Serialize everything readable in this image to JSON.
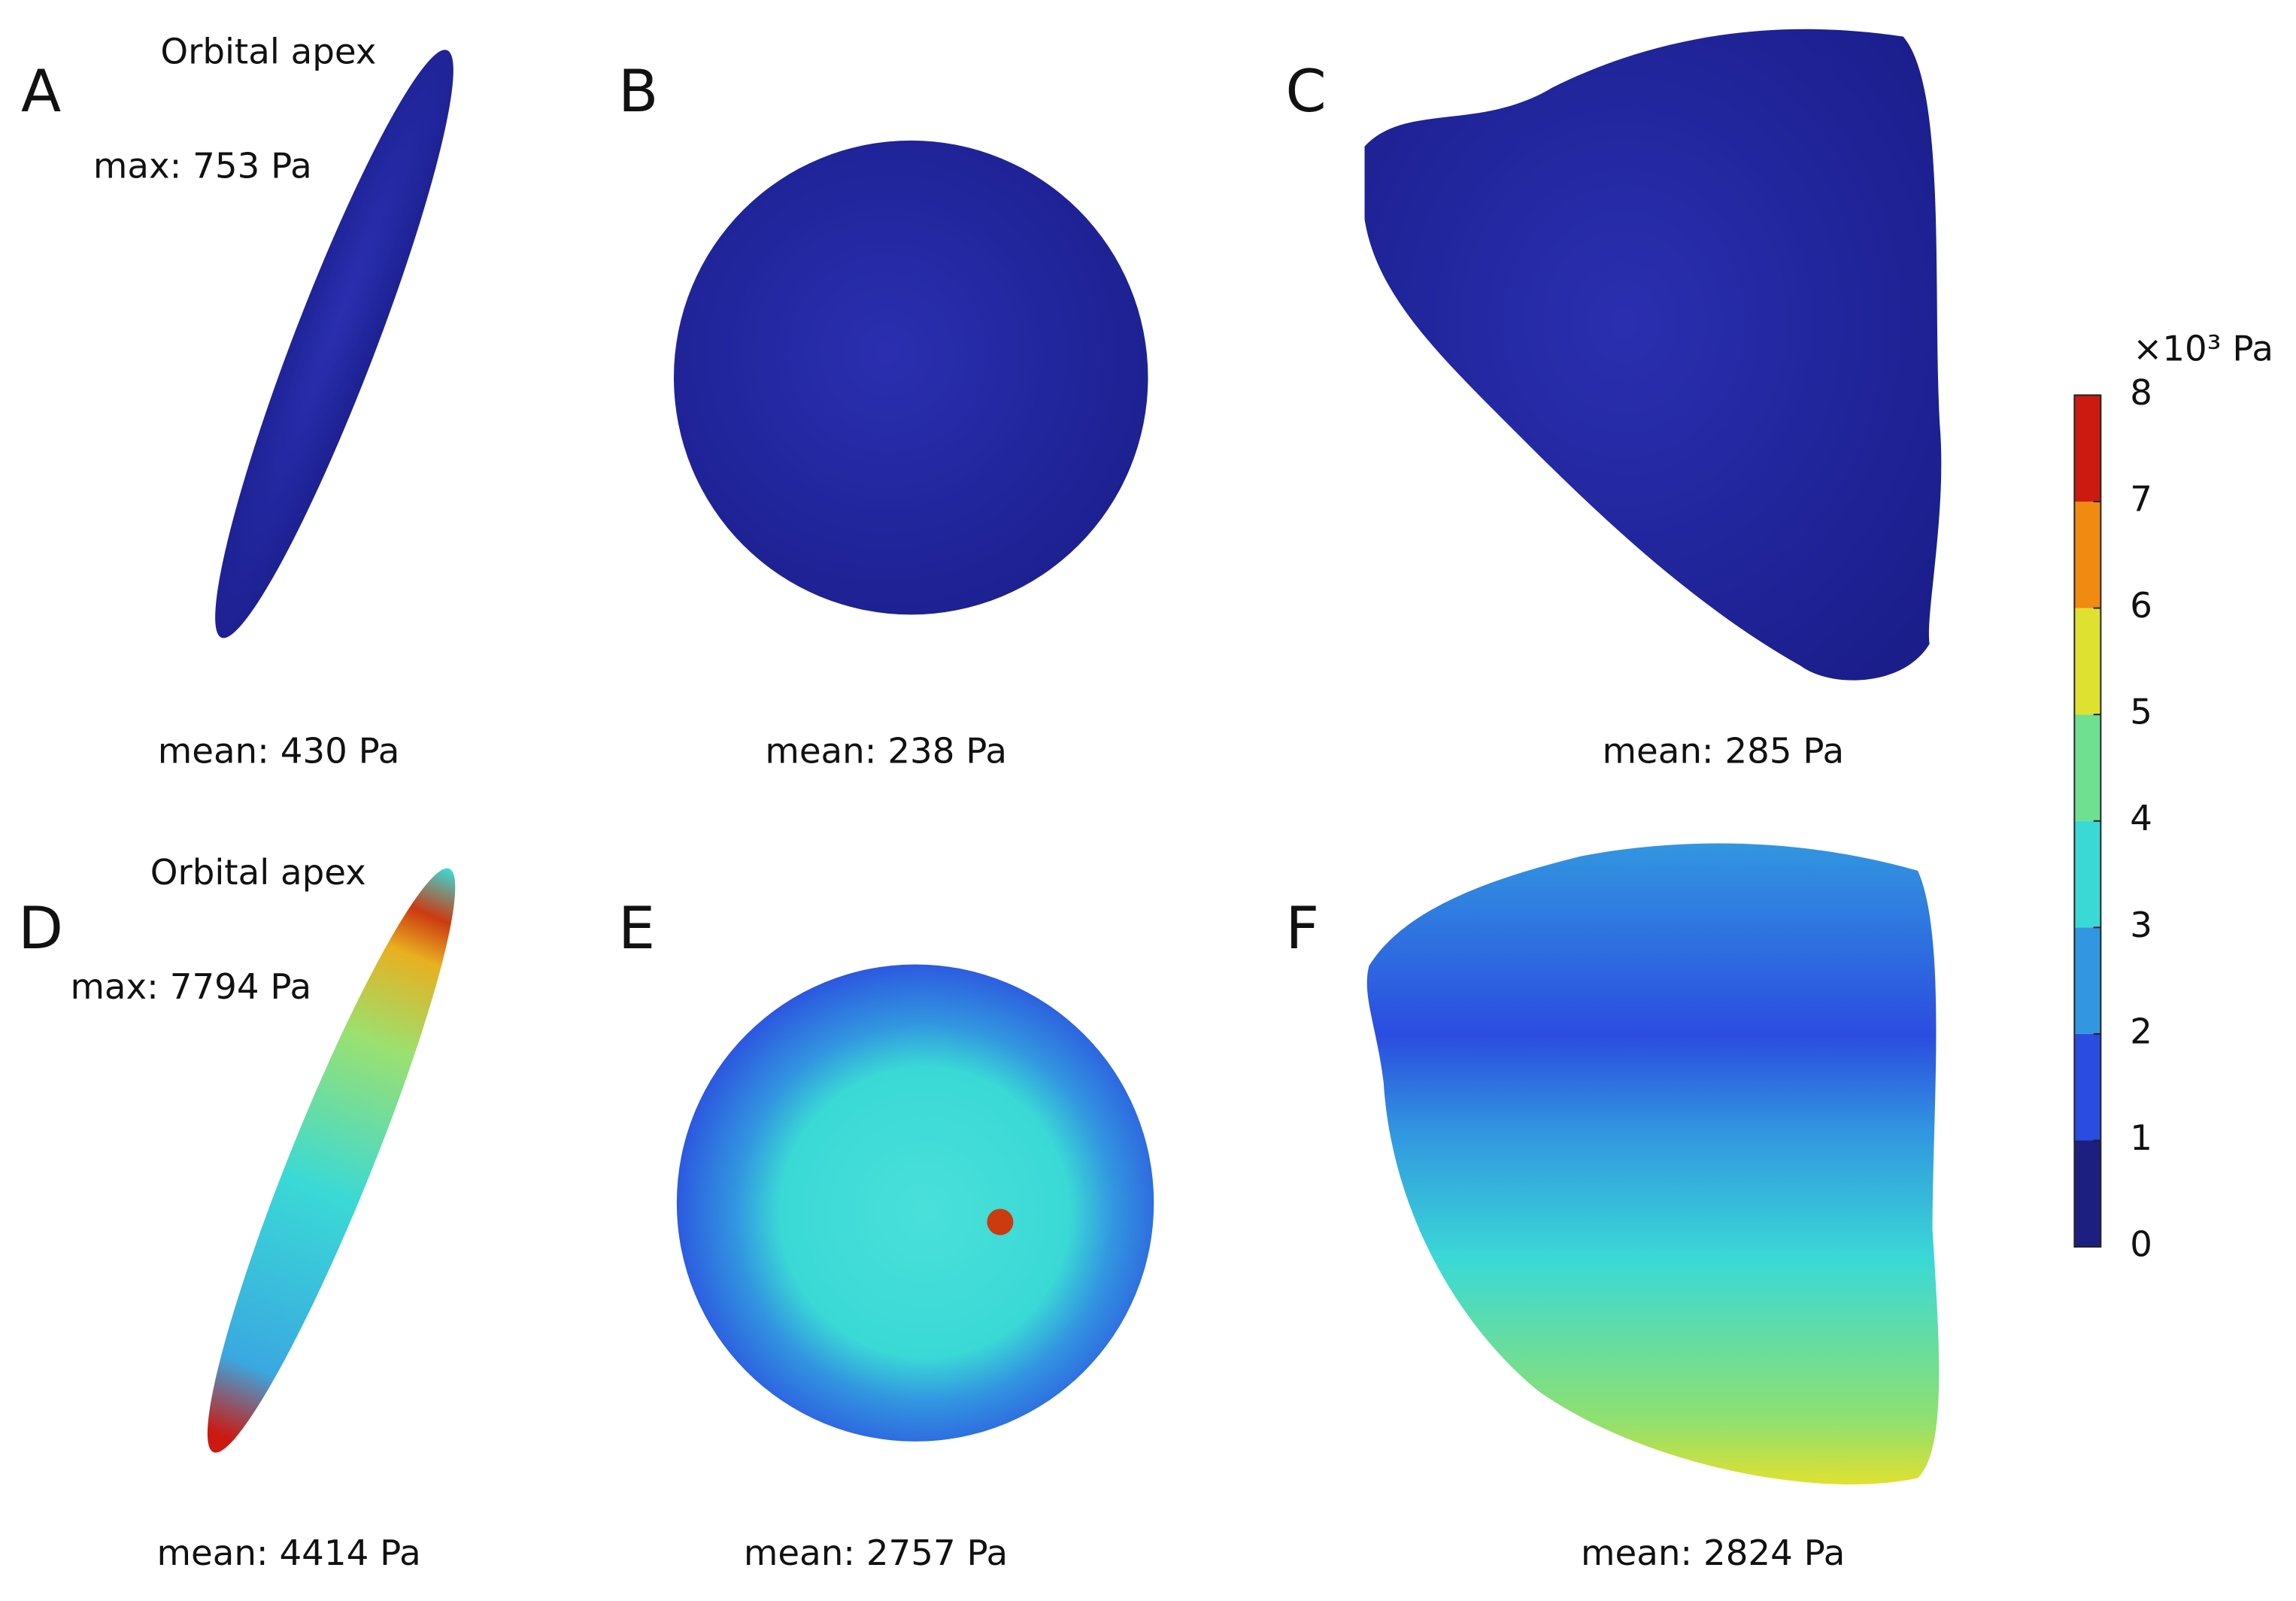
{
  "panels": [
    {
      "label": "A",
      "annotation": "Orbital apex",
      "max": "max: 753 Pa",
      "mean": "mean: 430 Pa"
    },
    {
      "label": "B",
      "mean": "mean: 238 Pa"
    },
    {
      "label": "C",
      "mean": "mean: 285 Pa"
    },
    {
      "label": "D",
      "annotation": "Orbital apex",
      "max": "max: 7794 Pa",
      "mean": "mean: 4414 Pa"
    },
    {
      "label": "E",
      "mean": "mean: 2757 Pa"
    },
    {
      "label": "F",
      "mean": "mean: 2824 Pa"
    }
  ],
  "colorbar": {
    "unit": "×10³ Pa",
    "lim": [
      0,
      8
    ],
    "ticks": [
      0,
      1,
      2,
      3,
      4,
      5,
      6,
      7,
      8
    ],
    "colors": [
      "#1c1f80",
      "#2b4ce0",
      "#3296e0",
      "#3ad9d6",
      "#6fe090",
      "#dfe130",
      "#f08a10",
      "#cc1a10"
    ]
  }
}
